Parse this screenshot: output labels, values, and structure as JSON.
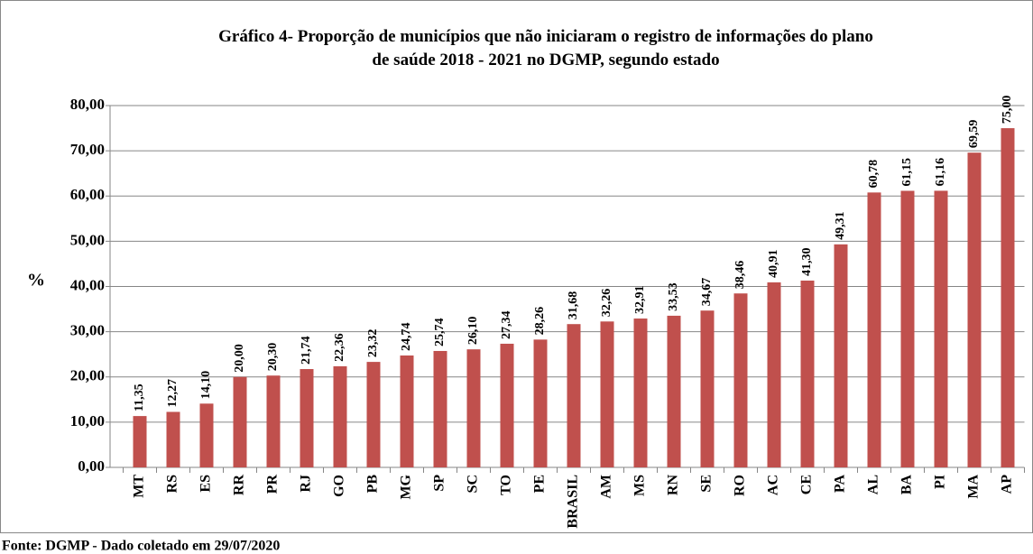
{
  "chart_data": {
    "type": "bar",
    "title": [
      "Gráfico 4-  Proporção  de municípios que não iniciaram o registro de informações do plano",
      "de saúde 2018 - 2021 no DGMP, segundo estado"
    ],
    "y_label": "%",
    "source": "Fonte: DGMP - Dado coletado em 29/07/2020",
    "categories": [
      "MT",
      "RS",
      "ES",
      "RR",
      "PR",
      "RJ",
      "GO",
      "PB",
      "MG",
      "SP",
      "SC",
      "TO",
      "PE",
      "BRASIL",
      "AM",
      "MS",
      "RN",
      "SE",
      "RO",
      "AC",
      "CE",
      "PA",
      "AL",
      "BA",
      "PI",
      "MA",
      "AP"
    ],
    "values": [
      11.35,
      12.27,
      14.1,
      20.0,
      20.3,
      21.74,
      22.36,
      23.32,
      24.74,
      25.74,
      26.1,
      27.34,
      28.26,
      31.68,
      32.26,
      32.91,
      33.53,
      34.67,
      38.46,
      40.91,
      41.3,
      49.31,
      60.78,
      61.15,
      61.16,
      69.59,
      75.0
    ],
    "value_labels": [
      "11,35",
      "12,27",
      "14,10",
      "20,00",
      "20,30",
      "21,74",
      "22,36",
      "23,32",
      "24,74",
      "25,74",
      "26,10",
      "27,34",
      "28,26",
      "31,68",
      "32,26",
      "32,91",
      "33,53",
      "34,67",
      "38,46",
      "40,91",
      "41,30",
      "49,31",
      "60,78",
      "61,15",
      "61,16",
      "69,59",
      "75,00"
    ],
    "color": "#c0504d",
    "ylim": [
      0,
      80
    ],
    "yticks": [
      {
        "value": 0,
        "label": "0,00"
      },
      {
        "value": 10,
        "label": "10,00"
      },
      {
        "value": 20,
        "label": "20,00"
      },
      {
        "value": 30,
        "label": "30,00"
      },
      {
        "value": 40,
        "label": "40,00"
      },
      {
        "value": 50,
        "label": "50,00"
      },
      {
        "value": 60,
        "label": "60,00"
      },
      {
        "value": 70,
        "label": "70,00"
      },
      {
        "value": 80,
        "label": "80,00"
      }
    ],
    "grid": true
  }
}
